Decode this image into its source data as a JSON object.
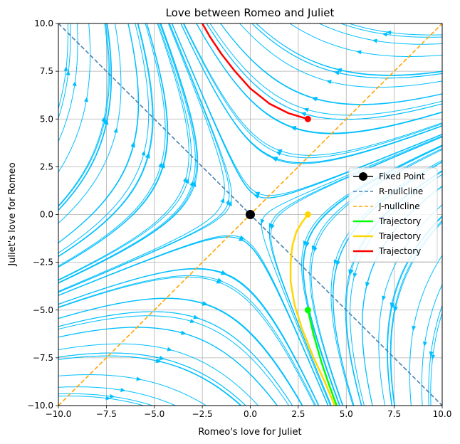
{
  "chart_data": {
    "type": "line",
    "title": "Love between Romeo and Juliet",
    "xlabel": "Romeo's love for Juliet",
    "ylabel": "Juliet's love for Romeo",
    "xlim": [
      -10,
      10
    ],
    "ylim": [
      -10,
      10
    ],
    "xticks": [
      -10,
      -7.5,
      -5,
      -2.5,
      0,
      2.5,
      5,
      7.5,
      10
    ],
    "xtick_labels": [
      "−10.0",
      "−7.5",
      "−5.0",
      "−2.5",
      "0.0",
      "2.5",
      "5.0",
      "7.5",
      "10.0"
    ],
    "yticks": [
      -10,
      -7.5,
      -5,
      -2.5,
      0,
      2.5,
      5,
      7.5,
      10
    ],
    "ytick_labels": [
      "−10.0",
      "−7.5",
      "−5.0",
      "−2.5",
      "0.0",
      "2.5",
      "5.0",
      "7.5",
      "10.0"
    ],
    "grid": true,
    "legend_position": "center-right",
    "stream_color": "#00bfff",
    "fixed_point": {
      "name": "Fixed Point",
      "x": 0,
      "y": 0,
      "color": "#000000"
    },
    "nullclines": [
      {
        "name": "R-nullcline",
        "color": "#4682b4",
        "points": [
          [
            -10,
            10
          ],
          [
            10,
            -10
          ]
        ]
      },
      {
        "name": "J-nullcline",
        "color": "#ffa500",
        "points": [
          [
            -10,
            -10
          ],
          [
            10,
            10
          ]
        ]
      }
    ],
    "series": [
      {
        "name": "Trajectory",
        "color": "#00ff00",
        "x": [
          3,
          3.3,
          3.7,
          4.1,
          4.5
        ],
        "y": [
          -5,
          -6.3,
          -7.7,
          -8.9,
          -10
        ]
      },
      {
        "name": "Trajectory",
        "color": "#ffd700",
        "x": [
          3,
          2.7,
          2.4,
          2.2,
          2.1,
          2.1,
          2.3,
          2.7,
          3.3,
          3.9,
          4.4
        ],
        "y": [
          0,
          -0.4,
          -0.9,
          -1.6,
          -2.5,
          -3.5,
          -4.7,
          -6.0,
          -7.5,
          -8.8,
          -10
        ]
      },
      {
        "name": "Trajectory",
        "color": "#ff0000",
        "x": [
          3,
          2,
          1,
          0,
          -0.8,
          -1.5,
          -2.1,
          -2.5
        ],
        "y": [
          5,
          5.3,
          5.8,
          6.6,
          7.5,
          8.4,
          9.3,
          10
        ]
      }
    ],
    "start_points": [
      {
        "x": 3,
        "y": -5,
        "color": "#00ff00"
      },
      {
        "x": 3,
        "y": 0,
        "color": "#ffd700"
      },
      {
        "x": 3,
        "y": 5,
        "color": "#ff0000"
      }
    ]
  }
}
